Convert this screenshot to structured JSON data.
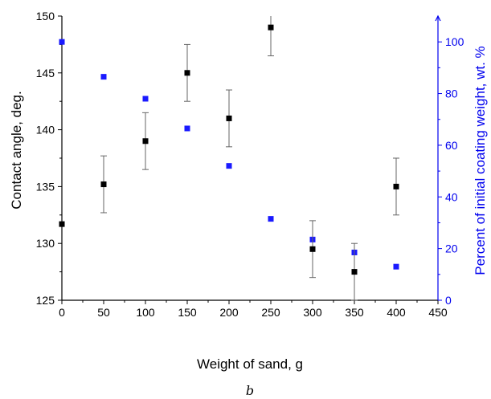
{
  "caption": "b",
  "colors": {
    "left_axis": "#000000",
    "right_axis": "#0000ee",
    "marker_black": "#000000",
    "marker_blue": "#1a1aff"
  },
  "chart_data": {
    "type": "scatter",
    "xlabel": "Weight of sand, g",
    "ylabel_left": "Contact angle, deg.",
    "ylabel_right": "Percent of initial coating weight, wt. %",
    "xlim": [
      0,
      450
    ],
    "ylim_left": [
      125,
      150
    ],
    "ylim_right": [
      0,
      110
    ],
    "x_ticks": [
      "0",
      "50",
      "100",
      "150",
      "200",
      "250",
      "300",
      "350",
      "400",
      "450"
    ],
    "y_left_ticks": [
      "125",
      "130",
      "135",
      "140",
      "145",
      "150"
    ],
    "y_right_ticks": [
      "0",
      "20",
      "40",
      "60",
      "80",
      "100"
    ],
    "grid": false,
    "series": [
      {
        "axis": "left",
        "x": [
          0,
          50,
          100,
          150,
          200,
          250,
          300,
          350,
          400
        ],
        "y": [
          131.7,
          135.2,
          139.0,
          145.0,
          141.0,
          149.0,
          129.5,
          127.5,
          135.0
        ],
        "error": [
          0,
          2.5,
          2.5,
          2.5,
          2.5,
          2.5,
          2.5,
          2.5,
          2.5
        ]
      },
      {
        "axis": "right",
        "x": [
          0,
          50,
          100,
          150,
          200,
          250,
          300,
          350,
          400
        ],
        "y": [
          100,
          86.5,
          78,
          66.5,
          52,
          31.5,
          23.5,
          18.5,
          13
        ]
      }
    ]
  }
}
